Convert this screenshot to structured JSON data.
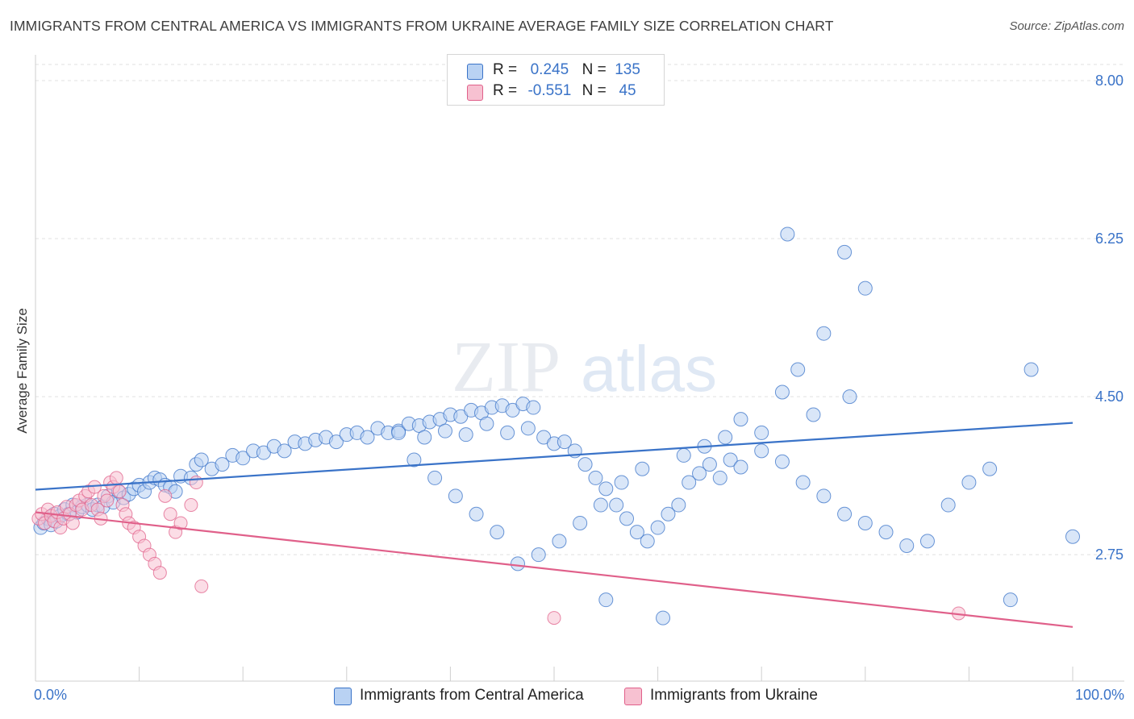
{
  "header": {
    "title": "IMMIGRANTS FROM CENTRAL AMERICA VS IMMIGRANTS FROM UKRAINE AVERAGE FAMILY SIZE CORRELATION CHART",
    "source": "Source: ZipAtlas.com"
  },
  "watermark": {
    "part1": "ZIP",
    "part2": "atlas"
  },
  "legend": {
    "rows": [
      {
        "r_label": "R =",
        "r_value": "0.245",
        "n_label": "N =",
        "n_value": "135"
      },
      {
        "r_label": "R =",
        "r_value": "-0.551",
        "n_label": "N =",
        "n_value": "45"
      }
    ]
  },
  "chart_data": {
    "type": "scatter",
    "title": "IMMIGRANTS FROM CENTRAL AMERICA VS IMMIGRANTS FROM UKRAINE AVERAGE FAMILY SIZE CORRELATION CHART",
    "xlabel": "",
    "ylabel": "Average Family Size",
    "xlim": [
      0,
      100
    ],
    "ylim": [
      1.35,
      8.25
    ],
    "x_tick_labels": [
      "0.0%",
      "100.0%"
    ],
    "y_ticks": [
      2.75,
      4.5,
      6.25,
      8.0
    ],
    "y_tick_labels": [
      "2.75",
      "4.50",
      "6.25",
      "8.00"
    ],
    "grid": true,
    "legend_position": "top-center",
    "colors": {
      "blue": "#3a73c8",
      "blue_fill": "#b9d2f3",
      "pink": "#e0608a",
      "pink_fill": "#f7c1d1",
      "grid": "#e0e0e0"
    },
    "series": [
      {
        "name": "Immigrants from Central America",
        "r": 0.245,
        "n": 135,
        "trend": {
          "x": [
            0,
            100
          ],
          "y": [
            3.47,
            4.21
          ]
        },
        "points": [
          [
            0.5,
            3.05
          ],
          [
            0.8,
            3.1
          ],
          [
            1.2,
            3.15
          ],
          [
            1.5,
            3.08
          ],
          [
            1.8,
            3.2
          ],
          [
            2.0,
            3.12
          ],
          [
            2.4,
            3.18
          ],
          [
            2.8,
            3.25
          ],
          [
            3.2,
            3.2
          ],
          [
            3.6,
            3.3
          ],
          [
            4.0,
            3.22
          ],
          [
            4.5,
            3.28
          ],
          [
            5.0,
            3.3
          ],
          [
            5.5,
            3.25
          ],
          [
            6.0,
            3.3
          ],
          [
            6.5,
            3.28
          ],
          [
            7.0,
            3.4
          ],
          [
            7.5,
            3.33
          ],
          [
            8.0,
            3.45
          ],
          [
            8.5,
            3.38
          ],
          [
            9.0,
            3.42
          ],
          [
            9.5,
            3.48
          ],
          [
            10.0,
            3.52
          ],
          [
            10.5,
            3.45
          ],
          [
            11.0,
            3.55
          ],
          [
            11.5,
            3.6
          ],
          [
            12.0,
            3.58
          ],
          [
            12.5,
            3.52
          ],
          [
            13.0,
            3.5
          ],
          [
            13.5,
            3.45
          ],
          [
            14.0,
            3.62
          ],
          [
            15.0,
            3.6
          ],
          [
            15.5,
            3.75
          ],
          [
            16.0,
            3.8
          ],
          [
            17.0,
            3.7
          ],
          [
            18.0,
            3.75
          ],
          [
            19.0,
            3.85
          ],
          [
            20.0,
            3.82
          ],
          [
            21.0,
            3.9
          ],
          [
            22.0,
            3.88
          ],
          [
            23.0,
            3.95
          ],
          [
            24.0,
            3.9
          ],
          [
            25.0,
            4.0
          ],
          [
            26.0,
            3.98
          ],
          [
            27.0,
            4.02
          ],
          [
            28.0,
            4.05
          ],
          [
            29.0,
            4.0
          ],
          [
            30.0,
            4.08
          ],
          [
            31.0,
            4.1
          ],
          [
            32.0,
            4.05
          ],
          [
            33.0,
            4.15
          ],
          [
            34.0,
            4.1
          ],
          [
            35.0,
            4.12
          ],
          [
            36.0,
            4.2
          ],
          [
            37.0,
            4.18
          ],
          [
            38.0,
            4.22
          ],
          [
            39.0,
            4.25
          ],
          [
            40.0,
            4.3
          ],
          [
            41.0,
            4.28
          ],
          [
            42.0,
            4.35
          ],
          [
            43.0,
            4.32
          ],
          [
            44.0,
            4.38
          ],
          [
            45.0,
            4.4
          ],
          [
            46.0,
            4.35
          ],
          [
            47.0,
            4.42
          ],
          [
            48.0,
            4.38
          ],
          [
            35.0,
            4.1
          ],
          [
            37.5,
            4.05
          ],
          [
            39.5,
            4.12
          ],
          [
            41.5,
            4.08
          ],
          [
            43.5,
            4.2
          ],
          [
            45.5,
            4.1
          ],
          [
            47.5,
            4.15
          ],
          [
            49.0,
            4.05
          ],
          [
            50.0,
            3.98
          ],
          [
            51.0,
            4.0
          ],
          [
            52.0,
            3.9
          ],
          [
            53.0,
            3.75
          ],
          [
            54.0,
            3.6
          ],
          [
            55.0,
            3.48
          ],
          [
            56.0,
            3.3
          ],
          [
            57.0,
            3.15
          ],
          [
            58.0,
            3.0
          ],
          [
            59.0,
            2.9
          ],
          [
            60.0,
            3.05
          ],
          [
            61.0,
            3.2
          ],
          [
            62.0,
            3.3
          ],
          [
            63.0,
            3.55
          ],
          [
            64.0,
            3.65
          ],
          [
            65.0,
            3.75
          ],
          [
            66.0,
            3.6
          ],
          [
            67.0,
            3.8
          ],
          [
            68.0,
            3.72
          ],
          [
            70.0,
            3.9
          ],
          [
            72.0,
            3.78
          ],
          [
            74.0,
            3.55
          ],
          [
            76.0,
            3.4
          ],
          [
            78.0,
            3.2
          ],
          [
            80.0,
            3.1
          ],
          [
            82.0,
            3.0
          ],
          [
            84.0,
            2.85
          ],
          [
            86.0,
            2.9
          ],
          [
            88.0,
            3.3
          ],
          [
            90.0,
            3.55
          ],
          [
            92.0,
            3.7
          ],
          [
            60.5,
            2.05
          ],
          [
            55.0,
            2.25
          ],
          [
            94.0,
            2.25
          ],
          [
            100.0,
            2.95
          ],
          [
            96.0,
            4.8
          ],
          [
            72.0,
            4.55
          ],
          [
            73.5,
            4.8
          ],
          [
            76.0,
            5.2
          ],
          [
            78.0,
            6.1
          ],
          [
            72.5,
            6.3
          ],
          [
            80.0,
            5.7
          ],
          [
            78.5,
            4.5
          ],
          [
            75.0,
            4.3
          ],
          [
            70.0,
            4.1
          ],
          [
            68.0,
            4.25
          ],
          [
            66.5,
            4.05
          ],
          [
            64.5,
            3.95
          ],
          [
            62.5,
            3.85
          ],
          [
            58.5,
            3.7
          ],
          [
            56.5,
            3.55
          ],
          [
            54.5,
            3.3
          ],
          [
            52.5,
            3.1
          ],
          [
            50.5,
            2.9
          ],
          [
            48.5,
            2.75
          ],
          [
            46.5,
            2.65
          ],
          [
            44.5,
            3.0
          ],
          [
            42.5,
            3.2
          ],
          [
            40.5,
            3.4
          ],
          [
            38.5,
            3.6
          ],
          [
            36.5,
            3.8
          ]
        ]
      },
      {
        "name": "Immigrants from Ukraine",
        "r": -0.551,
        "n": 45,
        "trend": {
          "x": [
            0,
            100
          ],
          "y": [
            3.22,
            1.95
          ]
        },
        "points": [
          [
            0.3,
            3.15
          ],
          [
            0.6,
            3.2
          ],
          [
            0.9,
            3.1
          ],
          [
            1.2,
            3.25
          ],
          [
            1.5,
            3.18
          ],
          [
            1.8,
            3.12
          ],
          [
            2.1,
            3.22
          ],
          [
            2.4,
            3.05
          ],
          [
            2.7,
            3.15
          ],
          [
            3.0,
            3.28
          ],
          [
            3.3,
            3.2
          ],
          [
            3.6,
            3.1
          ],
          [
            3.9,
            3.3
          ],
          [
            4.2,
            3.35
          ],
          [
            4.5,
            3.25
          ],
          [
            4.8,
            3.4
          ],
          [
            5.1,
            3.45
          ],
          [
            5.4,
            3.3
          ],
          [
            5.7,
            3.5
          ],
          [
            6.0,
            3.25
          ],
          [
            6.3,
            3.15
          ],
          [
            6.6,
            3.4
          ],
          [
            6.9,
            3.35
          ],
          [
            7.2,
            3.55
          ],
          [
            7.5,
            3.5
          ],
          [
            7.8,
            3.6
          ],
          [
            8.1,
            3.45
          ],
          [
            8.4,
            3.3
          ],
          [
            8.7,
            3.2
          ],
          [
            9.0,
            3.1
          ],
          [
            9.5,
            3.05
          ],
          [
            10.0,
            2.95
          ],
          [
            10.5,
            2.85
          ],
          [
            11.0,
            2.75
          ],
          [
            11.5,
            2.65
          ],
          [
            12.0,
            2.55
          ],
          [
            12.5,
            3.4
          ],
          [
            13.0,
            3.2
          ],
          [
            13.5,
            3.0
          ],
          [
            14.0,
            3.1
          ],
          [
            15.0,
            3.3
          ],
          [
            15.5,
            3.55
          ],
          [
            16.0,
            2.4
          ],
          [
            50.0,
            2.05
          ],
          [
            89.0,
            2.1
          ]
        ]
      }
    ]
  },
  "bottom_legend": {
    "items": [
      {
        "label": "Immigrants from Central America"
      },
      {
        "label": "Immigrants from Ukraine"
      }
    ]
  },
  "x_axis": {
    "min_label": "0.0%",
    "max_label": "100.0%"
  }
}
